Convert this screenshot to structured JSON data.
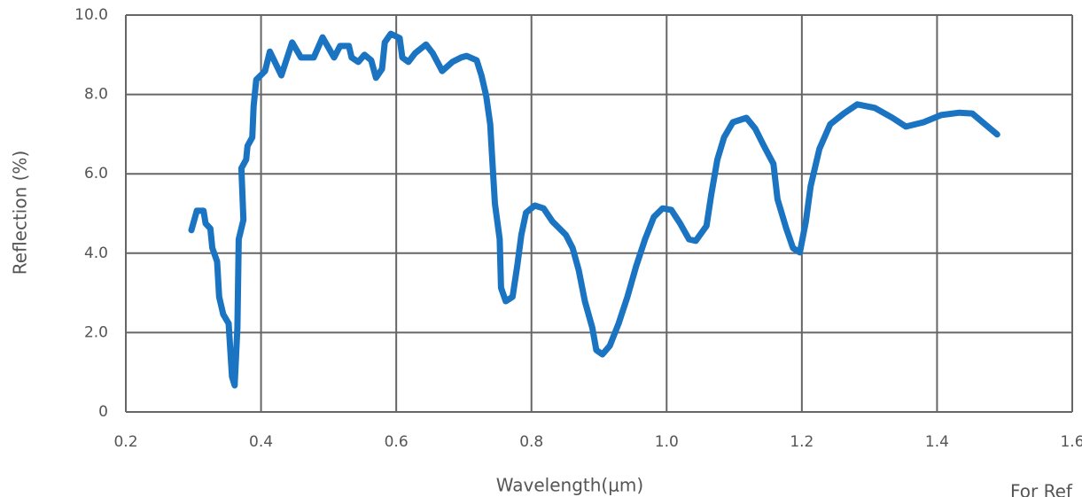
{
  "chart_data": {
    "type": "line",
    "xlabel": "Wavelength(μm)",
    "ylabel": "Reflection (%)",
    "annotation": "For Ref",
    "xlim": [
      0.2,
      1.6
    ],
    "xticks": [
      0.2,
      0.4,
      0.6,
      0.8,
      {
        "value": 1,
        "label": "1.0"
      },
      1.2,
      1.4,
      1.6
    ],
    "ylim": [
      0,
      10
    ],
    "yticks": [
      0,
      {
        "value": 2,
        "label": "2.0"
      },
      {
        "value": 4,
        "label": "4.0"
      },
      {
        "value": 6,
        "label": "6.0"
      },
      {
        "value": 8,
        "label": "8.0"
      },
      {
        "value": 10,
        "label": "10.0"
      }
    ],
    "grid": true,
    "series": [
      {
        "color": "#1a74c1",
        "x": [
          0.297,
          0.305,
          0.315,
          0.318,
          0.325,
          0.328,
          0.335,
          0.338,
          0.344,
          0.352,
          0.357,
          0.361,
          0.365,
          0.367,
          0.374,
          0.371,
          0.378,
          0.38,
          0.387,
          0.389,
          0.393,
          0.406,
          0.413,
          0.43,
          0.446,
          0.459,
          0.478,
          0.491,
          0.508,
          0.517,
          0.53,
          0.534,
          0.544,
          0.553,
          0.563,
          0.57,
          0.579,
          0.583,
          0.592,
          0.605,
          0.609,
          0.618,
          0.628,
          0.644,
          0.654,
          0.668,
          0.683,
          0.696,
          0.704,
          0.719,
          0.726,
          0.733,
          0.739,
          0.742,
          0.746,
          0.753,
          0.755,
          0.762,
          0.772,
          0.779,
          0.785,
          0.792,
          0.805,
          0.818,
          0.831,
          0.851,
          0.861,
          0.87,
          0.879,
          0.89,
          0.896,
          0.905,
          0.916,
          0.929,
          0.942,
          0.955,
          0.968,
          0.981,
          0.994,
          1.007,
          1.02,
          1.033,
          1.043,
          1.059,
          1.066,
          1.075,
          1.085,
          1.098,
          1.118,
          1.131,
          1.144,
          1.158,
          1.164,
          1.177,
          1.187,
          1.197,
          1.206,
          1.213,
          1.226,
          1.242,
          1.262,
          1.282,
          1.308,
          1.334,
          1.354,
          1.38,
          1.406,
          1.433,
          1.452,
          1.489
        ],
        "values": [
          4.58,
          5.07,
          5.07,
          4.75,
          4.62,
          4.13,
          3.79,
          2.9,
          2.46,
          2.23,
          0.89,
          0.67,
          2.12,
          4.35,
          4.84,
          6.14,
          6.36,
          6.7,
          6.92,
          7.7,
          8.37,
          8.59,
          9.08,
          8.48,
          9.31,
          8.93,
          8.93,
          9.44,
          8.93,
          9.22,
          9.22,
          8.93,
          8.82,
          9.0,
          8.86,
          8.42,
          8.64,
          9.31,
          9.53,
          9.42,
          8.93,
          8.82,
          9.04,
          9.26,
          9.04,
          8.59,
          8.82,
          8.93,
          8.97,
          8.86,
          8.48,
          7.97,
          7.25,
          6.36,
          5.25,
          4.35,
          3.13,
          2.79,
          2.9,
          3.68,
          4.46,
          5.02,
          5.2,
          5.13,
          4.8,
          4.46,
          4.13,
          3.57,
          2.79,
          2.12,
          1.56,
          1.45,
          1.67,
          2.23,
          2.9,
          3.68,
          4.35,
          4.91,
          5.13,
          5.09,
          4.75,
          4.35,
          4.31,
          4.69,
          5.47,
          6.36,
          6.92,
          7.3,
          7.41,
          7.14,
          6.7,
          6.25,
          5.36,
          4.62,
          4.13,
          4.02,
          4.8,
          5.69,
          6.63,
          7.25,
          7.52,
          7.75,
          7.66,
          7.41,
          7.19,
          7.3,
          7.48,
          7.54,
          7.52,
          6.99
        ]
      }
    ]
  }
}
